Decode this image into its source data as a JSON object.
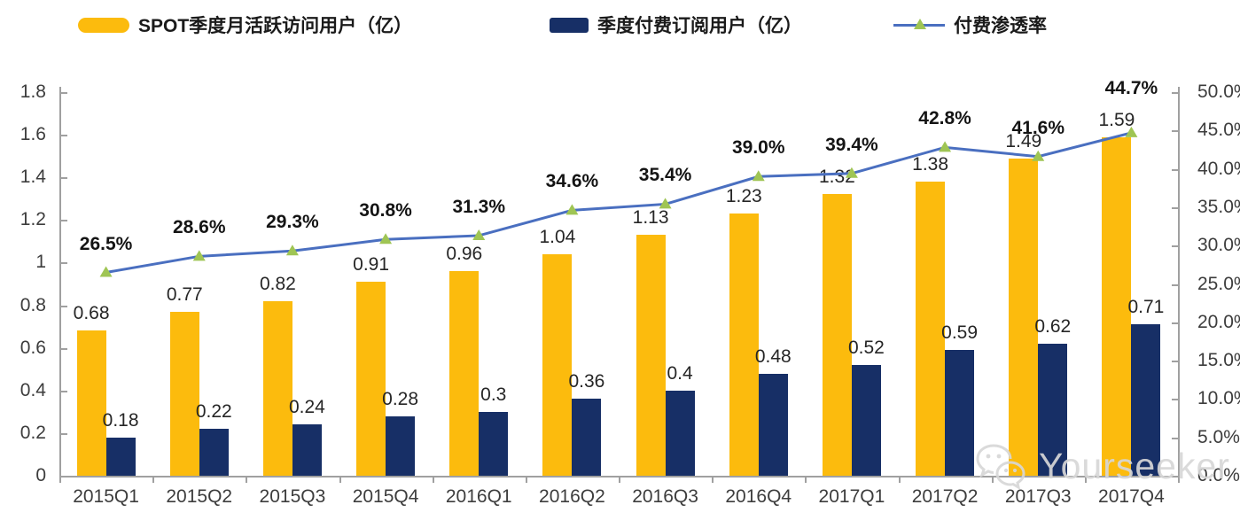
{
  "legend": {
    "items": [
      {
        "label": "SPOT季度月活跃访问用户（亿）"
      },
      {
        "label": "季度付费订阅用户（亿）"
      },
      {
        "label": "付费渗透率"
      }
    ]
  },
  "colors": {
    "mau_bar": "#FCBB0D",
    "subs_bar": "#172F66",
    "line": "#4A6FC0",
    "marker": "#9FC554",
    "axis": "#A0A0A0"
  },
  "chart_data": {
    "type": "bar",
    "subtype": "combo-dual-axis-bar-line",
    "categories": [
      "2015Q1",
      "2015Q2",
      "2015Q3",
      "2015Q4",
      "2016Q1",
      "2016Q2",
      "2016Q3",
      "2016Q4",
      "2017Q1",
      "2017Q2",
      "2017Q3",
      "2017Q4"
    ],
    "series": [
      {
        "name": "SPOT季度月活跃访问用户（亿）",
        "type": "bar",
        "axis": "left",
        "color": "#FCBB0D",
        "values": [
          0.68,
          0.77,
          0.82,
          0.91,
          0.96,
          1.04,
          1.13,
          1.23,
          1.32,
          1.38,
          1.49,
          1.59
        ],
        "labels": [
          "0.68",
          "0.77",
          "0.82",
          "0.91",
          "0.96",
          "1.04",
          "1.13",
          "1.23",
          "1.32",
          "1.38",
          "1.49",
          "1.59"
        ]
      },
      {
        "name": "季度付费订阅用户（亿）",
        "type": "bar",
        "axis": "left",
        "color": "#172F66",
        "values": [
          0.18,
          0.22,
          0.24,
          0.28,
          0.3,
          0.36,
          0.4,
          0.48,
          0.52,
          0.59,
          0.62,
          0.71
        ],
        "labels": [
          "0.18",
          "0.22",
          "0.24",
          "0.28",
          "0.3",
          "0.36",
          "0.4",
          "0.48",
          "0.52",
          "0.59",
          "0.62",
          "0.71"
        ]
      },
      {
        "name": "付费渗透率",
        "type": "line",
        "axis": "right",
        "color": "#4A6FC0",
        "marker": "triangle",
        "marker_color": "#9FC554",
        "values": [
          26.5,
          28.6,
          29.3,
          30.8,
          31.3,
          34.6,
          35.4,
          39.0,
          39.4,
          42.8,
          41.6,
          44.7
        ],
        "labels": [
          "26.5%",
          "28.6%",
          "29.3%",
          "30.8%",
          "31.3%",
          "34.6%",
          "35.4%",
          "39.0%",
          "39.4%",
          "42.8%",
          "41.6%",
          "44.7%"
        ]
      }
    ],
    "left_axis": {
      "min": 0,
      "max": 1.8,
      "ticks": [
        "1.8",
        "1.6",
        "1.4",
        "1.2",
        "1",
        "0.8",
        "0.6",
        "0.4",
        "0.2",
        "0"
      ]
    },
    "right_axis": {
      "min": 0,
      "max": 50,
      "ticks": [
        "50.0%",
        "45.0%",
        "40.0%",
        "35.0%",
        "30.0%",
        "25.0%",
        "20.0%",
        "15.0%",
        "10.0%",
        "5.0%",
        "0.0%"
      ]
    },
    "grid": false,
    "legend_position": "top"
  },
  "watermark": {
    "text": "Yourseeker"
  }
}
